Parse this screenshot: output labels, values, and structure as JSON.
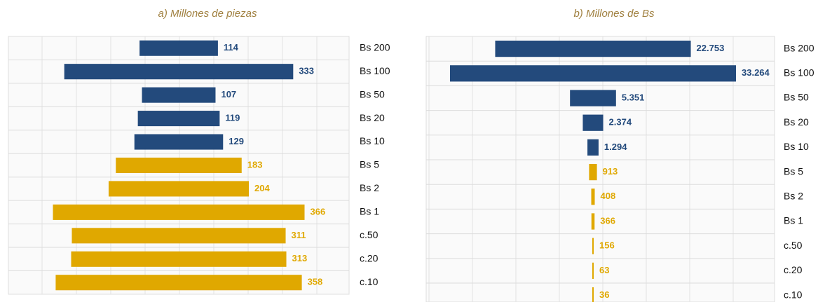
{
  "chart_data": [
    {
      "type": "funnel",
      "title": "a) Millones de piezas",
      "categories": [
        "Bs 200",
        "Bs 100",
        "Bs 50",
        "Bs 20",
        "Bs 10",
        "Bs 5",
        "Bs 2",
        "Bs 1",
        "c.50",
        "c.20",
        "c.10"
      ],
      "values": [
        114,
        333,
        107,
        119,
        129,
        183,
        204,
        366,
        311,
        313,
        358
      ],
      "colors": [
        "#234a7c",
        "#234a7c",
        "#234a7c",
        "#234a7c",
        "#234a7c",
        "#e0a800",
        "#e0a800",
        "#e0a800",
        "#e0a800",
        "#e0a800",
        "#e0a800"
      ],
      "grid": true
    },
    {
      "type": "funnel",
      "title": "b) Millones de Bs",
      "categories": [
        "Bs 200",
        "Bs 100",
        "Bs 50",
        "Bs 20",
        "Bs 10",
        "Bs 5",
        "Bs 2",
        "Bs 1",
        "c.50",
        "c.20",
        "c.10"
      ],
      "values": [
        22753,
        33264,
        5351,
        2374,
        1294,
        913,
        408,
        366,
        156,
        63,
        36
      ],
      "value_labels": [
        "22.753",
        "33.264",
        "5.351",
        "2.374",
        "1.294",
        "913",
        "408",
        "366",
        "156",
        "63",
        "36"
      ],
      "colors": [
        "#234a7c",
        "#234a7c",
        "#234a7c",
        "#234a7c",
        "#234a7c",
        "#e0a800",
        "#e0a800",
        "#e0a800",
        "#e0a800",
        "#e0a800",
        "#e0a800"
      ],
      "grid": true
    }
  ]
}
